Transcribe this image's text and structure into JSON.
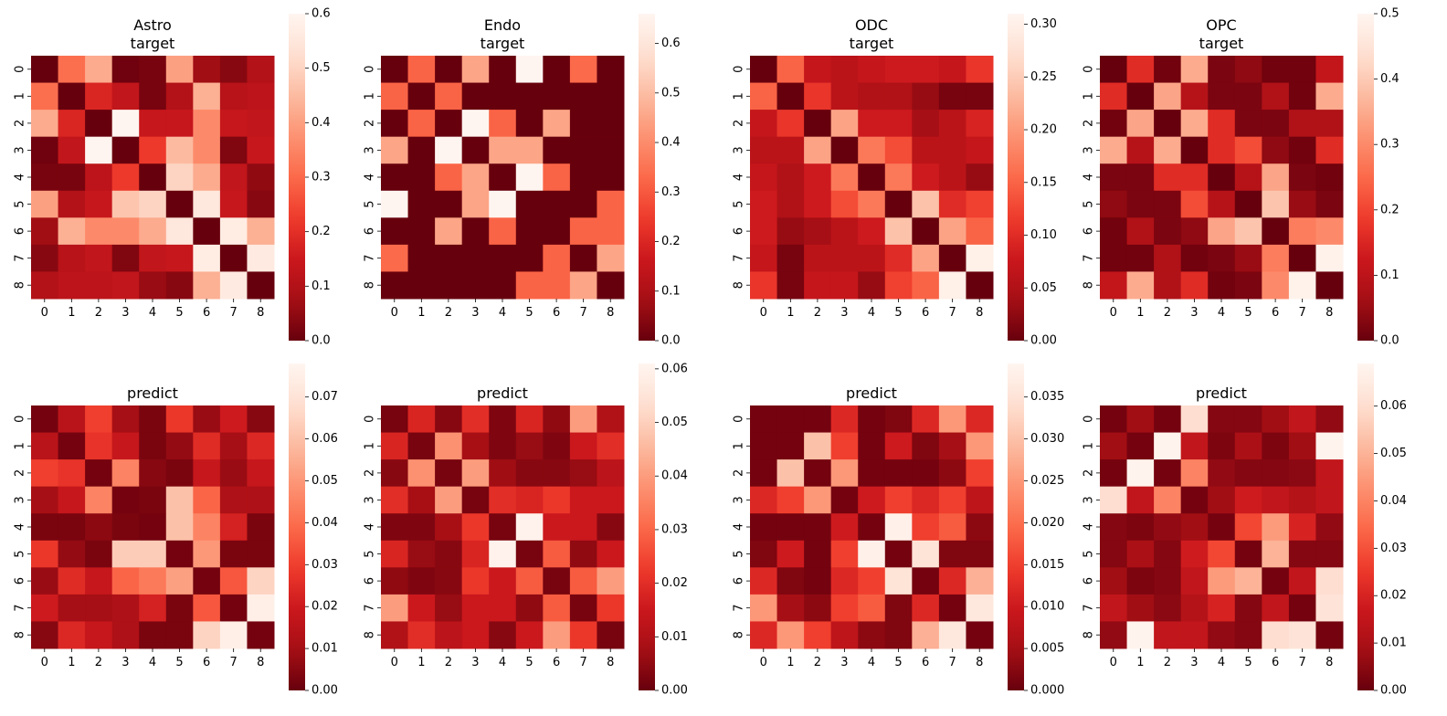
{
  "chart_data": [
    {
      "type": "heatmap",
      "title_lines": [
        "Astro",
        "target"
      ],
      "x": [
        "0",
        "1",
        "2",
        "3",
        "4",
        "5",
        "6",
        "7",
        "8"
      ],
      "y": [
        "0",
        "1",
        "2",
        "3",
        "4",
        "5",
        "6",
        "7",
        "8"
      ],
      "vmin": 0,
      "vmax": 0.6,
      "colorbar_ticks": [
        "0.0",
        "0.1",
        "0.2",
        "0.3",
        "0.4",
        "0.5",
        "0.6"
      ],
      "colormap": "Reds_r",
      "values": [
        [
          0.0,
          0.31,
          0.42,
          0.01,
          0.02,
          0.4,
          0.07,
          0.04,
          0.1
        ],
        [
          0.31,
          0.0,
          0.18,
          0.13,
          0.02,
          0.1,
          0.43,
          0.11,
          0.12
        ],
        [
          0.42,
          0.18,
          0.0,
          0.6,
          0.14,
          0.14,
          0.36,
          0.14,
          0.13
        ],
        [
          0.01,
          0.13,
          0.6,
          0.0,
          0.22,
          0.45,
          0.36,
          0.03,
          0.14
        ],
        [
          0.02,
          0.02,
          0.12,
          0.22,
          0.0,
          0.5,
          0.42,
          0.13,
          0.05
        ],
        [
          0.4,
          0.1,
          0.14,
          0.47,
          0.5,
          0.0,
          0.55,
          0.14,
          0.04
        ],
        [
          0.07,
          0.43,
          0.36,
          0.36,
          0.42,
          0.55,
          0.0,
          0.57,
          0.43
        ],
        [
          0.04,
          0.11,
          0.13,
          0.03,
          0.13,
          0.14,
          0.57,
          0.0,
          0.56
        ],
        [
          0.1,
          0.12,
          0.12,
          0.13,
          0.06,
          0.04,
          0.43,
          0.56,
          0.0
        ]
      ]
    },
    {
      "type": "heatmap",
      "title_lines": [
        "Endo",
        "target"
      ],
      "x": [
        "0",
        "1",
        "2",
        "3",
        "4",
        "5",
        "6",
        "7",
        "8"
      ],
      "y": [
        "0",
        "1",
        "2",
        "3",
        "4",
        "5",
        "6",
        "7",
        "8"
      ],
      "vmin": 0,
      "vmax": 0.66,
      "colorbar_ticks": [
        "0.0",
        "0.1",
        "0.2",
        "0.3",
        "0.4",
        "0.5",
        "0.6"
      ],
      "colormap": "Reds_r",
      "values": [
        [
          0.0,
          0.32,
          0.0,
          0.45,
          0.0,
          0.66,
          0.0,
          0.33,
          0.0
        ],
        [
          0.32,
          0.0,
          0.32,
          0.0,
          0.0,
          0.0,
          0.0,
          0.0,
          0.0
        ],
        [
          0.0,
          0.32,
          0.0,
          0.66,
          0.32,
          0.0,
          0.45,
          0.0,
          0.0
        ],
        [
          0.45,
          0.0,
          0.66,
          0.0,
          0.45,
          0.45,
          0.0,
          0.0,
          0.0
        ],
        [
          0.0,
          0.0,
          0.32,
          0.45,
          0.0,
          0.66,
          0.32,
          0.0,
          0.0
        ],
        [
          0.66,
          0.0,
          0.0,
          0.45,
          0.66,
          0.0,
          0.0,
          0.0,
          0.32
        ],
        [
          0.0,
          0.0,
          0.45,
          0.0,
          0.32,
          0.0,
          0.0,
          0.32,
          0.32
        ],
        [
          0.33,
          0.0,
          0.0,
          0.0,
          0.0,
          0.0,
          0.32,
          0.0,
          0.45
        ],
        [
          0.0,
          0.0,
          0.0,
          0.0,
          0.0,
          0.32,
          0.32,
          0.45,
          0.0
        ]
      ]
    },
    {
      "type": "heatmap",
      "title_lines": [
        "ODC",
        "target"
      ],
      "x": [
        "0",
        "1",
        "2",
        "3",
        "4",
        "5",
        "6",
        "7",
        "8"
      ],
      "y": [
        "0",
        "1",
        "2",
        "3",
        "4",
        "5",
        "6",
        "7",
        "8"
      ],
      "vmin": 0,
      "vmax": 0.31,
      "colorbar_ticks": [
        "0.00",
        "0.05",
        "0.10",
        "0.15",
        "0.20",
        "0.25",
        "0.30"
      ],
      "colormap": "Reds_r",
      "values": [
        [
          0.0,
          0.15,
          0.07,
          0.06,
          0.07,
          0.08,
          0.08,
          0.07,
          0.11
        ],
        [
          0.15,
          0.0,
          0.11,
          0.06,
          0.05,
          0.05,
          0.03,
          0.01,
          0.01
        ],
        [
          0.07,
          0.11,
          0.0,
          0.21,
          0.08,
          0.08,
          0.04,
          0.06,
          0.09
        ],
        [
          0.06,
          0.06,
          0.21,
          0.0,
          0.17,
          0.13,
          0.06,
          0.06,
          0.07
        ],
        [
          0.07,
          0.05,
          0.08,
          0.17,
          0.0,
          0.17,
          0.08,
          0.06,
          0.03
        ],
        [
          0.08,
          0.05,
          0.08,
          0.13,
          0.17,
          0.0,
          0.24,
          0.1,
          0.12
        ],
        [
          0.08,
          0.03,
          0.04,
          0.06,
          0.08,
          0.24,
          0.0,
          0.21,
          0.15
        ],
        [
          0.07,
          0.01,
          0.06,
          0.06,
          0.06,
          0.1,
          0.21,
          0.0,
          0.3
        ],
        [
          0.11,
          0.01,
          0.07,
          0.07,
          0.03,
          0.12,
          0.15,
          0.3,
          0.0
        ]
      ]
    },
    {
      "type": "heatmap",
      "title_lines": [
        "OPC",
        "target"
      ],
      "x": [
        "0",
        "1",
        "2",
        "3",
        "4",
        "5",
        "6",
        "7",
        "8"
      ],
      "y": [
        "0",
        "1",
        "2",
        "3",
        "4",
        "5",
        "6",
        "7",
        "8"
      ],
      "vmin": 0,
      "vmax": 0.5,
      "colorbar_ticks": [
        "0.0",
        "0.1",
        "0.2",
        "0.3",
        "0.4",
        "0.5"
      ],
      "colormap": "Reds_r",
      "values": [
        [
          0.0,
          0.16,
          0.01,
          0.35,
          0.02,
          0.04,
          0.01,
          0.01,
          0.11
        ],
        [
          0.16,
          0.0,
          0.34,
          0.09,
          0.02,
          0.02,
          0.08,
          0.01,
          0.35
        ],
        [
          0.01,
          0.34,
          0.0,
          0.35,
          0.16,
          0.02,
          0.02,
          0.08,
          0.08
        ],
        [
          0.35,
          0.09,
          0.35,
          0.0,
          0.16,
          0.21,
          0.04,
          0.01,
          0.16
        ],
        [
          0.02,
          0.02,
          0.16,
          0.16,
          0.0,
          0.09,
          0.34,
          0.02,
          0.01
        ],
        [
          0.04,
          0.02,
          0.02,
          0.21,
          0.09,
          0.0,
          0.39,
          0.05,
          0.02
        ],
        [
          0.01,
          0.08,
          0.02,
          0.04,
          0.34,
          0.39,
          0.0,
          0.28,
          0.3
        ],
        [
          0.01,
          0.01,
          0.08,
          0.01,
          0.02,
          0.05,
          0.28,
          0.0,
          0.49
        ],
        [
          0.11,
          0.35,
          0.08,
          0.16,
          0.01,
          0.02,
          0.3,
          0.49,
          0.0
        ]
      ]
    },
    {
      "type": "heatmap",
      "title_lines": [
        "predict"
      ],
      "x": [
        "0",
        "1",
        "2",
        "3",
        "4",
        "5",
        "6",
        "7",
        "8"
      ],
      "y": [
        "0",
        "1",
        "2",
        "3",
        "4",
        "5",
        "6",
        "7",
        "8"
      ],
      "vmin": 0,
      "vmax": 0.078,
      "colorbar_ticks": [
        "0.00",
        "0.01",
        "0.02",
        "0.03",
        "0.04",
        "0.05",
        "0.06",
        "0.07"
      ],
      "colormap": "Reds_r",
      "values": [
        [
          0.002,
          0.015,
          0.03,
          0.01,
          0.003,
          0.028,
          0.008,
          0.02,
          0.005
        ],
        [
          0.015,
          0.002,
          0.027,
          0.018,
          0.003,
          0.007,
          0.025,
          0.01,
          0.024
        ],
        [
          0.03,
          0.027,
          0.002,
          0.045,
          0.005,
          0.003,
          0.018,
          0.008,
          0.018
        ],
        [
          0.01,
          0.018,
          0.045,
          0.002,
          0.003,
          0.06,
          0.038,
          0.012,
          0.012
        ],
        [
          0.003,
          0.003,
          0.006,
          0.003,
          0.002,
          0.06,
          0.045,
          0.022,
          0.003
        ],
        [
          0.028,
          0.007,
          0.003,
          0.063,
          0.063,
          0.002,
          0.05,
          0.003,
          0.003
        ],
        [
          0.008,
          0.025,
          0.018,
          0.038,
          0.043,
          0.052,
          0.002,
          0.035,
          0.065
        ],
        [
          0.02,
          0.01,
          0.01,
          0.012,
          0.022,
          0.003,
          0.035,
          0.002,
          0.075
        ],
        [
          0.005,
          0.024,
          0.018,
          0.012,
          0.003,
          0.003,
          0.065,
          0.075,
          0.002
        ]
      ]
    },
    {
      "type": "heatmap",
      "title_lines": [
        "predict"
      ],
      "x": [
        "0",
        "1",
        "2",
        "3",
        "4",
        "5",
        "6",
        "7",
        "8"
      ],
      "y": [
        "0",
        "1",
        "2",
        "3",
        "4",
        "5",
        "6",
        "7",
        "8"
      ],
      "vmin": 0,
      "vmax": 0.061,
      "colorbar_ticks": [
        "0.00",
        "0.01",
        "0.02",
        "0.03",
        "0.04",
        "0.05",
        "0.06"
      ],
      "colormap": "Reds_r",
      "values": [
        [
          0.002,
          0.018,
          0.004,
          0.02,
          0.003,
          0.018,
          0.005,
          0.04,
          0.01
        ],
        [
          0.018,
          0.002,
          0.038,
          0.008,
          0.003,
          0.006,
          0.003,
          0.015,
          0.02
        ],
        [
          0.004,
          0.038,
          0.002,
          0.04,
          0.007,
          0.004,
          0.004,
          0.006,
          0.012
        ],
        [
          0.02,
          0.008,
          0.04,
          0.002,
          0.02,
          0.018,
          0.022,
          0.015,
          0.015
        ],
        [
          0.003,
          0.003,
          0.008,
          0.022,
          0.002,
          0.06,
          0.015,
          0.015,
          0.004
        ],
        [
          0.018,
          0.006,
          0.004,
          0.018,
          0.06,
          0.002,
          0.028,
          0.005,
          0.015
        ],
        [
          0.005,
          0.003,
          0.004,
          0.022,
          0.015,
          0.028,
          0.002,
          0.028,
          0.04
        ],
        [
          0.04,
          0.015,
          0.006,
          0.015,
          0.015,
          0.005,
          0.028,
          0.002,
          0.022
        ],
        [
          0.01,
          0.02,
          0.012,
          0.015,
          0.004,
          0.015,
          0.04,
          0.022,
          0.002
        ]
      ]
    },
    {
      "type": "heatmap",
      "title_lines": [
        "predict"
      ],
      "x": [
        "0",
        "1",
        "2",
        "3",
        "4",
        "5",
        "6",
        "7",
        "8"
      ],
      "y": [
        "0",
        "1",
        "2",
        "3",
        "4",
        "5",
        "6",
        "7",
        "8"
      ],
      "vmin": 0,
      "vmax": 0.039,
      "colorbar_ticks": [
        "0.000",
        "0.005",
        "0.010",
        "0.015",
        "0.020",
        "0.025",
        "0.030",
        "0.035"
      ],
      "colormap": "Reds_r",
      "values": [
        [
          0.001,
          0.001,
          0.001,
          0.012,
          0.001,
          0.002,
          0.012,
          0.025,
          0.012
        ],
        [
          0.001,
          0.001,
          0.03,
          0.015,
          0.001,
          0.01,
          0.002,
          0.005,
          0.025
        ],
        [
          0.001,
          0.03,
          0.001,
          0.025,
          0.001,
          0.001,
          0.001,
          0.003,
          0.015
        ],
        [
          0.012,
          0.015,
          0.025,
          0.001,
          0.01,
          0.015,
          0.012,
          0.015,
          0.008
        ],
        [
          0.001,
          0.001,
          0.001,
          0.01,
          0.001,
          0.038,
          0.015,
          0.018,
          0.003
        ],
        [
          0.002,
          0.01,
          0.001,
          0.015,
          0.038,
          0.001,
          0.035,
          0.002,
          0.002
        ],
        [
          0.012,
          0.002,
          0.001,
          0.012,
          0.015,
          0.035,
          0.001,
          0.012,
          0.028
        ],
        [
          0.025,
          0.005,
          0.003,
          0.015,
          0.018,
          0.002,
          0.012,
          0.001,
          0.036
        ],
        [
          0.012,
          0.025,
          0.015,
          0.008,
          0.003,
          0.002,
          0.028,
          0.036,
          0.001
        ]
      ]
    },
    {
      "type": "heatmap",
      "title_lines": [
        "predict"
      ],
      "x": [
        "0",
        "1",
        "2",
        "3",
        "4",
        "5",
        "6",
        "7",
        "8"
      ],
      "y": [
        "0",
        "1",
        "2",
        "3",
        "4",
        "5",
        "6",
        "7",
        "8"
      ],
      "vmin": 0,
      "vmax": 0.069,
      "colorbar_ticks": [
        "0.00",
        "0.01",
        "0.02",
        "0.03",
        "0.04",
        "0.05",
        "0.06"
      ],
      "colormap": "Reds_r",
      "values": [
        [
          0.002,
          0.008,
          0.002,
          0.06,
          0.004,
          0.004,
          0.008,
          0.015,
          0.006
        ],
        [
          0.008,
          0.002,
          0.068,
          0.015,
          0.003,
          0.01,
          0.003,
          0.008,
          0.068
        ],
        [
          0.002,
          0.068,
          0.002,
          0.04,
          0.006,
          0.004,
          0.004,
          0.005,
          0.015
        ],
        [
          0.06,
          0.015,
          0.04,
          0.002,
          0.008,
          0.018,
          0.015,
          0.012,
          0.015
        ],
        [
          0.004,
          0.003,
          0.006,
          0.008,
          0.002,
          0.028,
          0.045,
          0.02,
          0.006
        ],
        [
          0.004,
          0.01,
          0.004,
          0.018,
          0.028,
          0.002,
          0.05,
          0.004,
          0.004
        ],
        [
          0.008,
          0.003,
          0.004,
          0.015,
          0.045,
          0.05,
          0.002,
          0.015,
          0.06
        ],
        [
          0.015,
          0.008,
          0.005,
          0.012,
          0.02,
          0.004,
          0.015,
          0.002,
          0.062
        ],
        [
          0.006,
          0.068,
          0.015,
          0.015,
          0.006,
          0.004,
          0.06,
          0.062,
          0.002
        ]
      ]
    }
  ]
}
